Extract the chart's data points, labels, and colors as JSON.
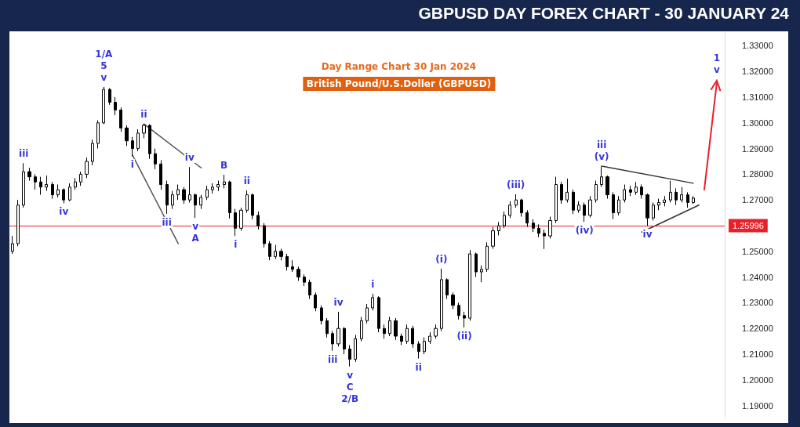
{
  "chart_data": {
    "type": "candlestick",
    "title": "GBPUSD DAY FOREX CHART - 30 JANUARY 24",
    "subtitle": "Day Range Chart 30 Jan 2024",
    "categories": [
      null,
      null,
      null,
      null,
      null,
      null,
      null,
      null,
      null,
      null,
      null,
      null,
      null,
      null,
      null,
      null,
      null,
      null,
      null,
      null,
      null,
      null,
      null,
      null,
      null,
      null,
      null,
      null,
      null,
      null,
      null,
      null,
      null,
      null,
      null,
      null,
      null,
      null,
      null,
      null,
      null,
      null,
      null,
      null,
      null,
      null,
      null,
      null,
      null,
      null,
      null,
      null,
      null,
      null,
      null,
      null,
      null,
      null,
      null,
      null,
      null,
      null,
      null,
      null,
      null,
      null,
      null,
      null,
      null,
      null,
      null,
      null,
      null,
      null,
      null,
      null,
      null,
      null,
      null,
      null,
      null,
      null,
      null,
      null,
      null,
      null,
      null,
      null,
      null,
      null,
      null,
      null,
      null,
      null,
      null,
      null,
      null,
      null,
      null,
      null,
      null,
      null,
      null,
      null,
      null,
      null,
      null,
      null,
      null,
      null,
      null,
      null,
      null,
      null,
      null,
      null,
      null,
      null,
      null,
      null,
      null,
      null,
      null,
      null,
      null
    ],
    "ohlc": [
      [
        1.25,
        1.256,
        1.249,
        1.253
      ],
      [
        1.253,
        1.27,
        1.252,
        1.268
      ],
      [
        1.268,
        1.2843,
        1.267,
        1.281
      ],
      [
        1.281,
        1.2825,
        1.2775,
        1.279
      ],
      [
        1.279,
        1.28,
        1.274,
        1.277
      ],
      [
        1.277,
        1.279,
        1.272,
        1.275
      ],
      [
        1.275,
        1.2795,
        1.2735,
        1.276
      ],
      [
        1.276,
        1.277,
        1.2705,
        1.272
      ],
      [
        1.272,
        1.276,
        1.271,
        1.274
      ],
      [
        1.274,
        1.2745,
        1.2687,
        1.27
      ],
      [
        1.27,
        1.2765,
        1.2695,
        1.275
      ],
      [
        1.275,
        1.2785,
        1.274,
        1.277
      ],
      [
        1.277,
        1.281,
        1.2755,
        1.28
      ],
      [
        1.28,
        1.2865,
        1.2785,
        1.285
      ],
      [
        1.285,
        1.2935,
        1.2835,
        1.292
      ],
      [
        1.292,
        1.301,
        1.29,
        1.3
      ],
      [
        1.3,
        1.314,
        1.2995,
        1.313
      ],
      [
        1.313,
        1.3135,
        1.307,
        1.308
      ],
      [
        1.308,
        1.31,
        1.303,
        1.305
      ],
      [
        1.305,
        1.306,
        1.2965,
        1.298
      ],
      [
        1.298,
        1.299,
        1.291,
        1.293
      ],
      [
        1.293,
        1.2945,
        1.287,
        1.29
      ],
      [
        1.29,
        1.2975,
        1.289,
        1.296
      ],
      [
        1.296,
        1.2996,
        1.294,
        1.299
      ],
      [
        1.299,
        1.2995,
        1.286,
        1.288
      ],
      [
        1.288,
        1.29,
        1.282,
        1.284
      ],
      [
        1.284,
        1.2855,
        1.274,
        1.276
      ],
      [
        1.276,
        1.2775,
        1.2646,
        1.268
      ],
      [
        1.268,
        1.2735,
        1.2665,
        1.272
      ],
      [
        1.272,
        1.276,
        1.27,
        1.274
      ],
      [
        1.274,
        1.275,
        1.2685,
        1.27
      ],
      [
        1.27,
        1.2828,
        1.269,
        1.272
      ],
      [
        1.272,
        1.2725,
        1.263,
        1.268
      ],
      [
        1.268,
        1.272,
        1.2665,
        1.271
      ],
      [
        1.271,
        1.2755,
        1.27,
        1.274
      ],
      [
        1.274,
        1.2765,
        1.2725,
        1.275
      ],
      [
        1.275,
        1.2775,
        1.2735,
        1.276
      ],
      [
        1.276,
        1.2798,
        1.2745,
        1.277
      ],
      [
        1.277,
        1.2775,
        1.2628,
        1.265
      ],
      [
        1.265,
        1.2665,
        1.256,
        1.259
      ],
      [
        1.259,
        1.267,
        1.258,
        1.266
      ],
      [
        1.266,
        1.2737,
        1.265,
        1.272
      ],
      [
        1.272,
        1.2725,
        1.2625,
        1.264
      ],
      [
        1.264,
        1.2655,
        1.2585,
        1.26
      ],
      [
        1.26,
        1.261,
        1.2515,
        1.253
      ],
      [
        1.253,
        1.254,
        1.2465,
        1.248
      ],
      [
        1.248,
        1.2525,
        1.247,
        1.25
      ],
      [
        1.25,
        1.251,
        1.2465,
        1.248
      ],
      [
        1.248,
        1.249,
        1.2425,
        1.244
      ],
      [
        1.244,
        1.2465,
        1.242,
        1.243
      ],
      [
        1.243,
        1.244,
        1.2385,
        1.24
      ],
      [
        1.24,
        1.241,
        1.2365,
        1.238
      ],
      [
        1.238,
        1.239,
        1.2315,
        1.233
      ],
      [
        1.233,
        1.234,
        1.2267,
        1.228
      ],
      [
        1.228,
        1.229,
        1.2215,
        1.223
      ],
      [
        1.223,
        1.224,
        1.2165,
        1.218
      ],
      [
        1.218,
        1.219,
        1.2113,
        1.214
      ],
      [
        1.214,
        1.2265,
        1.213,
        1.22
      ],
      [
        1.22,
        1.2205,
        1.21,
        1.212
      ],
      [
        1.212,
        1.2135,
        1.2052,
        1.208
      ],
      [
        1.208,
        1.2175,
        1.207,
        1.216
      ],
      [
        1.216,
        1.2245,
        1.215,
        1.223
      ],
      [
        1.223,
        1.2295,
        1.222,
        1.228
      ],
      [
        1.228,
        1.2335,
        1.227,
        1.232
      ],
      [
        1.232,
        1.2325,
        1.2185,
        1.22
      ],
      [
        1.22,
        1.2215,
        1.216,
        1.218
      ],
      [
        1.218,
        1.2245,
        1.217,
        1.223
      ],
      [
        1.223,
        1.224,
        1.2155,
        1.217
      ],
      [
        1.217,
        1.218,
        1.2135,
        1.215
      ],
      [
        1.215,
        1.2215,
        1.214,
        1.22
      ],
      [
        1.22,
        1.221,
        1.2125,
        1.214
      ],
      [
        1.214,
        1.215,
        1.2083,
        1.211
      ],
      [
        1.211,
        1.2165,
        1.21,
        1.215
      ],
      [
        1.215,
        1.2185,
        1.214,
        1.217
      ],
      [
        1.217,
        1.2215,
        1.216,
        1.22
      ],
      [
        1.22,
        1.2433,
        1.219,
        1.239
      ],
      [
        1.239,
        1.2395,
        1.2315,
        1.233
      ],
      [
        1.233,
        1.234,
        1.2275,
        1.229
      ],
      [
        1.229,
        1.23,
        1.2235,
        1.225
      ],
      [
        1.225,
        1.2265,
        1.2204,
        1.224
      ],
      [
        1.224,
        1.2505,
        1.223,
        1.249
      ],
      [
        1.249,
        1.2495,
        1.24,
        1.242
      ],
      [
        1.242,
        1.2445,
        1.238,
        1.243
      ],
      [
        1.243,
        1.2535,
        1.242,
        1.252
      ],
      [
        1.252,
        1.2595,
        1.251,
        1.258
      ],
      [
        1.258,
        1.2614,
        1.2562,
        1.26
      ],
      [
        1.26,
        1.2655,
        1.259,
        1.264
      ],
      [
        1.264,
        1.2695,
        1.263,
        1.268
      ],
      [
        1.268,
        1.2722,
        1.267,
        1.27
      ],
      [
        1.27,
        1.2705,
        1.2635,
        1.265
      ],
      [
        1.265,
        1.266,
        1.2595,
        1.261
      ],
      [
        1.261,
        1.2625,
        1.2575,
        1.259
      ],
      [
        1.259,
        1.2605,
        1.2555,
        1.257
      ],
      [
        1.257,
        1.2585,
        1.2509,
        1.256
      ],
      [
        1.256,
        1.2635,
        1.255,
        1.262
      ],
      [
        1.262,
        1.279,
        1.261,
        1.276
      ],
      [
        1.276,
        1.277,
        1.2685,
        1.27
      ],
      [
        1.27,
        1.2783,
        1.269,
        1.273
      ],
      [
        1.273,
        1.274,
        1.2645,
        1.266
      ],
      [
        1.266,
        1.2695,
        1.265,
        1.268
      ],
      [
        1.268,
        1.269,
        1.2615,
        1.264
      ],
      [
        1.264,
        1.2715,
        1.2632,
        1.27
      ],
      [
        1.27,
        1.2775,
        1.269,
        1.276
      ],
      [
        1.276,
        1.283,
        1.275,
        1.279
      ],
      [
        1.279,
        1.2795,
        1.2705,
        1.272
      ],
      [
        1.272,
        1.273,
        1.2625,
        1.265
      ],
      [
        1.265,
        1.2715,
        1.264,
        1.27
      ],
      [
        1.27,
        1.276,
        1.269,
        1.274
      ],
      [
        1.274,
        1.2755,
        1.2715,
        1.273
      ],
      [
        1.273,
        1.277,
        1.272,
        1.275
      ],
      [
        1.275,
        1.276,
        1.2705,
        1.272
      ],
      [
        1.272,
        1.2725,
        1.26,
        1.263
      ],
      [
        1.263,
        1.269,
        1.262,
        1.268
      ],
      [
        1.268,
        1.2705,
        1.266,
        1.269
      ],
      [
        1.269,
        1.2715,
        1.2675,
        1.27
      ],
      [
        1.27,
        1.2775,
        1.269,
        1.273
      ],
      [
        1.273,
        1.2745,
        1.268,
        1.27
      ],
      [
        1.27,
        1.275,
        1.269,
        1.272
      ],
      [
        1.272,
        1.273,
        1.267,
        1.269
      ],
      [
        1.269,
        1.2715,
        1.2685,
        1.2707
      ],
      null,
      null,
      null,
      null,
      null
    ],
    "series": [
      {
        "type": "line",
        "color": "#555555",
        "values": [
          null,
          null,
          null,
          null,
          null,
          null,
          null,
          null,
          null,
          null,
          null,
          null,
          null,
          null,
          null,
          null,
          null,
          null,
          null,
          null,
          null,
          null,
          null,
          1.2996,
          null,
          null,
          null,
          null,
          null,
          null,
          null,
          null,
          null,
          1.2825,
          null,
          null,
          null,
          null,
          null,
          null,
          null,
          null,
          null,
          null,
          null,
          null,
          null,
          null,
          null,
          null,
          null,
          null,
          null,
          null,
          null,
          null,
          null,
          null,
          null,
          null,
          null,
          null,
          null,
          null,
          null,
          null,
          null,
          null,
          null,
          null,
          null,
          null,
          null,
          null,
          null,
          null,
          null,
          null,
          null,
          null,
          null,
          null,
          null,
          null,
          null,
          null,
          null,
          null,
          null,
          null,
          null,
          null,
          null,
          null,
          null,
          null,
          null,
          null,
          null,
          null,
          null,
          null,
          null,
          null,
          null,
          null,
          null,
          null,
          null,
          null,
          null,
          null,
          null,
          null,
          null,
          null,
          null,
          null,
          null,
          null,
          null,
          null,
          null,
          null,
          null
        ]
      },
      {
        "type": "line",
        "color": "#555555",
        "values": [
          null,
          null,
          null,
          null,
          null,
          null,
          null,
          null,
          null,
          null,
          null,
          null,
          null,
          null,
          null,
          null,
          null,
          null,
          null,
          null,
          null,
          1.2875,
          null,
          null,
          null,
          null,
          null,
          null,
          null,
          1.253,
          null,
          null,
          null,
          null,
          null,
          null,
          null,
          null,
          null,
          null,
          null,
          null,
          null,
          null,
          null,
          null,
          null,
          null,
          null,
          null,
          null,
          null,
          null,
          null,
          null,
          null,
          null,
          null,
          null,
          null,
          null,
          null,
          null,
          null,
          null,
          null,
          null,
          null,
          null,
          null,
          null,
          null,
          null,
          null,
          null,
          null,
          null,
          null,
          null,
          null,
          null,
          null,
          null,
          null,
          null,
          null,
          null,
          null,
          null,
          null,
          null,
          null,
          null,
          null,
          null,
          null,
          null,
          null,
          null,
          null,
          null,
          null,
          null,
          null,
          null,
          null,
          null,
          null,
          null,
          null,
          null,
          null,
          null,
          null,
          null,
          null,
          null,
          null,
          null,
          null,
          null,
          null,
          null,
          null,
          null
        ]
      },
      {
        "type": "line",
        "color": "#333333",
        "values": [
          null,
          null,
          null,
          null,
          null,
          null,
          null,
          null,
          null,
          null,
          null,
          null,
          null,
          null,
          null,
          null,
          null,
          null,
          null,
          null,
          null,
          null,
          null,
          null,
          null,
          null,
          null,
          null,
          null,
          null,
          null,
          null,
          null,
          null,
          null,
          null,
          null,
          null,
          null,
          null,
          null,
          null,
          null,
          null,
          null,
          null,
          null,
          null,
          null,
          null,
          null,
          null,
          null,
          null,
          null,
          null,
          null,
          null,
          null,
          null,
          null,
          null,
          null,
          null,
          null,
          null,
          null,
          null,
          null,
          null,
          null,
          null,
          null,
          null,
          null,
          null,
          null,
          null,
          null,
          null,
          null,
          null,
          null,
          null,
          null,
          null,
          null,
          null,
          null,
          null,
          null,
          null,
          null,
          null,
          null,
          null,
          null,
          null,
          null,
          null,
          null,
          null,
          null,
          1.2832,
          null,
          null,
          null,
          null,
          null,
          null,
          null,
          null,
          null,
          null,
          null,
          null,
          null,
          null,
          null,
          1.2765,
          null,
          null,
          null,
          null,
          null
        ]
      },
      {
        "type": "line",
        "color": "#333333",
        "values": [
          null,
          null,
          null,
          null,
          null,
          null,
          null,
          null,
          null,
          null,
          null,
          null,
          null,
          null,
          null,
          null,
          null,
          null,
          null,
          null,
          null,
          null,
          null,
          null,
          null,
          null,
          null,
          null,
          null,
          null,
          null,
          null,
          null,
          null,
          null,
          null,
          null,
          null,
          null,
          null,
          null,
          null,
          null,
          null,
          null,
          null,
          null,
          null,
          null,
          null,
          null,
          null,
          null,
          null,
          null,
          null,
          null,
          null,
          null,
          null,
          null,
          null,
          null,
          null,
          null,
          null,
          null,
          null,
          null,
          null,
          null,
          null,
          null,
          null,
          null,
          null,
          null,
          null,
          null,
          null,
          null,
          null,
          null,
          null,
          null,
          null,
          null,
          null,
          null,
          null,
          null,
          null,
          null,
          null,
          null,
          null,
          null,
          null,
          null,
          null,
          null,
          null,
          null,
          null,
          null,
          null,
          null,
          null,
          null,
          null,
          1.2575,
          null,
          null,
          null,
          null,
          null,
          null,
          null,
          null,
          null,
          1.268,
          null,
          null,
          null,
          null
        ]
      }
    ],
    "ylim": [
      1.185,
      1.335
    ],
    "yticks": [
      {
        "value": 1.19,
        "label": "1.19000"
      },
      {
        "value": 1.2,
        "label": "1.20000"
      },
      {
        "value": 1.21,
        "label": "1.21000"
      },
      {
        "value": 1.22,
        "label": "1.22000"
      },
      {
        "value": 1.23,
        "label": "1.23000"
      },
      {
        "value": 1.24,
        "label": "1.24000"
      },
      {
        "value": 1.25,
        "label": "1.25000"
      },
      {
        "value": 1.27,
        "label": "1.27000"
      },
      {
        "value": 1.28,
        "label": "1.28000"
      },
      {
        "value": 1.29,
        "label": "1.29000"
      },
      {
        "value": 1.3,
        "label": "1.30000"
      },
      {
        "value": 1.31,
        "label": "1.31000"
      },
      {
        "value": 1.32,
        "label": "1.32000"
      },
      {
        "value": 1.33,
        "label": "1.33000"
      }
    ],
    "tick_labels": "y",
    "grid": false,
    "ref_lines": [
      {
        "axis": "y",
        "value": 1.25996,
        "label": "1.25996",
        "color": "#e8202a"
      }
    ],
    "annotations": [
      "British Pound/U.S.Doller (GBPUSD)",
      "iii",
      "iv",
      "v",
      "5",
      "1/A",
      "i",
      "ii",
      "iii",
      "iv",
      "v",
      "A",
      "B",
      "i",
      "ii",
      "iii",
      "iv",
      "v",
      "C",
      "2/B",
      "i",
      "ii",
      "(i)",
      "(ii)",
      "(iii)",
      "(iv)",
      "(v)",
      "iii",
      "iv",
      "v",
      "1"
    ]
  }
}
